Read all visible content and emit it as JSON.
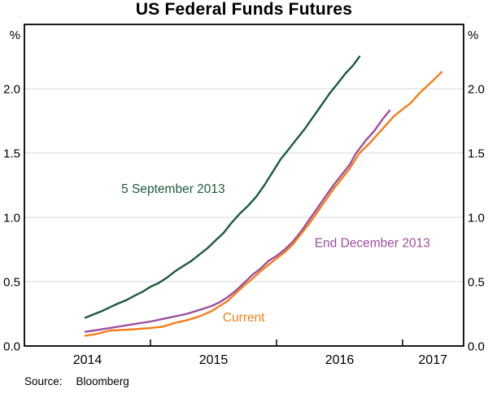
{
  "title": "US Federal Funds Futures",
  "source": {
    "label": "Source:",
    "value": "Bloomberg"
  },
  "chart_data": {
    "type": "line",
    "title": "US Federal Funds Futures",
    "y_unit": "%",
    "ylim": [
      0,
      2.5
    ],
    "xlim": [
      2014.0,
      2017.484
    ],
    "grid": "horizontal-only",
    "legend": "inline-annotations",
    "y_gridlines": [
      0.5,
      1.0,
      1.5,
      2.0
    ],
    "y_tick_values": [
      0.0,
      0.5,
      1.0,
      1.5,
      2.0
    ],
    "x_ticks": [
      2015,
      2016,
      2017
    ],
    "x_labels": [
      {
        "t": 2014.5,
        "label": "2014"
      },
      {
        "t": 2015.5,
        "label": "2015"
      },
      {
        "t": 2016.5,
        "label": "2016"
      },
      {
        "t": 2017.24,
        "label": "2017"
      }
    ],
    "series": [
      {
        "name": "5 September 2013",
        "color": "#1c5c3a",
        "x": [
          2014.484,
          2014.548,
          2014.613,
          2014.677,
          2014.742,
          2014.806,
          2014.871,
          2014.935,
          2015.0,
          2015.065,
          2015.129,
          2015.194,
          2015.258,
          2015.323,
          2015.387,
          2015.452,
          2015.516,
          2015.581,
          2015.645,
          2015.71,
          2015.774,
          2015.839,
          2015.903,
          2015.968,
          2016.032,
          2016.097,
          2016.161,
          2016.226,
          2016.29,
          2016.355,
          2016.419,
          2016.484,
          2016.548,
          2016.606,
          2016.658
        ],
        "values": [
          0.22,
          0.245,
          0.27,
          0.3,
          0.33,
          0.355,
          0.39,
          0.42,
          0.46,
          0.49,
          0.53,
          0.58,
          0.62,
          0.66,
          0.71,
          0.76,
          0.82,
          0.88,
          0.96,
          1.03,
          1.09,
          1.16,
          1.25,
          1.35,
          1.45,
          1.53,
          1.61,
          1.69,
          1.78,
          1.87,
          1.96,
          2.04,
          2.12,
          2.18,
          2.25
        ]
      },
      {
        "name": "End December 2013",
        "color": "#9c4f9e",
        "x": [
          2014.484,
          2014.581,
          2014.677,
          2014.774,
          2014.871,
          2015.0,
          2015.097,
          2015.194,
          2015.29,
          2015.387,
          2015.484,
          2015.548,
          2015.613,
          2015.677,
          2015.742,
          2015.806,
          2015.871,
          2015.935,
          2016.0,
          2016.065,
          2016.129,
          2016.194,
          2016.258,
          2016.323,
          2016.387,
          2016.452,
          2016.516,
          2016.581,
          2016.632,
          2016.71,
          2016.774,
          2016.839,
          2016.897
        ],
        "values": [
          0.11,
          0.125,
          0.14,
          0.155,
          0.17,
          0.19,
          0.21,
          0.23,
          0.25,
          0.28,
          0.31,
          0.34,
          0.38,
          0.43,
          0.49,
          0.55,
          0.6,
          0.66,
          0.7,
          0.75,
          0.81,
          0.89,
          0.98,
          1.07,
          1.16,
          1.25,
          1.33,
          1.41,
          1.5,
          1.6,
          1.67,
          1.76,
          1.83
        ]
      },
      {
        "name": "Current",
        "color": "#f67e18",
        "x": [
          2014.484,
          2014.581,
          2014.677,
          2014.774,
          2014.871,
          2015.0,
          2015.097,
          2015.194,
          2015.29,
          2015.387,
          2015.484,
          2015.548,
          2015.613,
          2015.677,
          2015.742,
          2015.806,
          2015.871,
          2015.935,
          2016.0,
          2016.065,
          2016.129,
          2016.194,
          2016.258,
          2016.323,
          2016.387,
          2016.452,
          2016.516,
          2016.581,
          2016.658,
          2016.742,
          2016.806,
          2016.871,
          2016.935,
          2017.0,
          2017.065,
          2017.129,
          2017.194,
          2017.258,
          2017.31
        ],
        "values": [
          0.08,
          0.095,
          0.12,
          0.125,
          0.13,
          0.14,
          0.15,
          0.18,
          0.2,
          0.23,
          0.27,
          0.31,
          0.35,
          0.41,
          0.47,
          0.52,
          0.58,
          0.63,
          0.68,
          0.73,
          0.79,
          0.87,
          0.95,
          1.04,
          1.13,
          1.22,
          1.3,
          1.38,
          1.5,
          1.58,
          1.65,
          1.72,
          1.79,
          1.84,
          1.89,
          1.96,
          2.02,
          2.08,
          2.13
        ]
      }
    ],
    "annotations": [
      {
        "text": "5 September 2013",
        "x": 2015.18,
        "y": 1.22,
        "color": "#1c5c3a"
      },
      {
        "text": "End December 2013",
        "x": 2016.76,
        "y": 0.8,
        "color": "#9c4f9e"
      },
      {
        "text": "Current",
        "x": 2015.74,
        "y": 0.22,
        "color": "#f67e18"
      }
    ]
  }
}
